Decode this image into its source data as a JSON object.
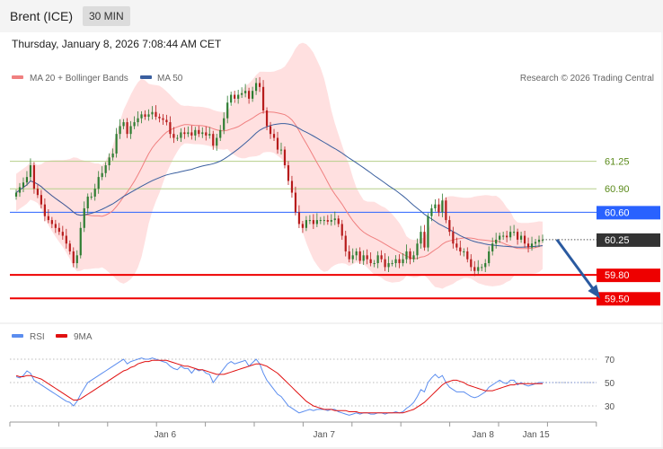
{
  "header": {
    "instrument": "Brent (ICE)",
    "timeframe": "30 MIN",
    "datetime": "Thursday, January 8, 2026 7:08:44 AM CET"
  },
  "colors": {
    "ma20": "#f08080",
    "ma50": "#3a5f9f",
    "bollinger_fill": "#ffd6d6",
    "candle_up": "#2e7d32",
    "candle_down": "#b71c1c",
    "resistance_line": "#b5cf8a",
    "pivot_line": "#2962ff",
    "support_line": "#ee0000",
    "current_tag": "#333333",
    "arrow": "#2a5aa0",
    "rsi": "#5b8def",
    "rsi_ma": "#e01010"
  },
  "chart_data": [
    {
      "type": "candlestick",
      "legend": [
        {
          "name": "MA 20 + Bollinger Bands",
          "color": "#f08080"
        },
        {
          "name": "MA 50",
          "color": "#3a5f9f"
        }
      ],
      "legend_position": "top-left",
      "copyright": "Research © 2026 Trading Central",
      "ylim": [
        59.4,
        61.9
      ],
      "x_ticks": [
        {
          "label": "Jan 6",
          "index": 45
        },
        {
          "label": "Jan 7",
          "index": 93
        },
        {
          "label": "Jan 8",
          "index": 141
        },
        {
          "label": "Jan 15",
          "index": 157
        }
      ],
      "x_count": 160,
      "levels": [
        {
          "label": "61.25",
          "value": 61.25,
          "kind": "resistance"
        },
        {
          "label": "60.90",
          "value": 60.9,
          "kind": "resistance"
        },
        {
          "label": "60.60",
          "value": 60.6,
          "kind": "pivot"
        },
        {
          "label": "59.80",
          "value": 59.8,
          "kind": "support"
        },
        {
          "label": "59.50",
          "value": 59.5,
          "kind": "support"
        }
      ],
      "current": {
        "label": "60.25",
        "value": 60.25
      },
      "forecast_arrow": {
        "from": {
          "index": 151,
          "value": 60.25
        },
        "to": {
          "index": 164,
          "value": 59.5
        }
      },
      "close": [
        60.85,
        60.92,
        60.98,
        61.05,
        61.2,
        60.9,
        60.82,
        60.7,
        60.55,
        60.5,
        60.45,
        60.4,
        60.35,
        60.3,
        60.2,
        60.1,
        59.95,
        60.05,
        60.4,
        60.65,
        60.8,
        60.8,
        60.9,
        61.05,
        61.1,
        61.2,
        61.3,
        61.35,
        61.6,
        61.7,
        61.75,
        61.6,
        61.7,
        61.75,
        61.8,
        61.85,
        61.82,
        61.85,
        61.88,
        61.82,
        61.8,
        61.78,
        61.75,
        61.6,
        61.55,
        61.55,
        61.62,
        61.6,
        61.62,
        61.58,
        61.65,
        61.6,
        61.62,
        61.58,
        61.6,
        61.45,
        61.55,
        61.65,
        61.8,
        62.0,
        62.1,
        62.05,
        62.1,
        62.12,
        62.15,
        62.05,
        62.15,
        62.25,
        62.2,
        61.9,
        61.7,
        61.6,
        61.55,
        61.4,
        61.4,
        61.2,
        61.0,
        60.85,
        60.6,
        60.45,
        60.4,
        60.5,
        60.5,
        60.45,
        60.5,
        60.5,
        60.5,
        60.48,
        60.5,
        60.52,
        60.45,
        60.3,
        60.1,
        60.0,
        60.05,
        60.1,
        59.98,
        60.05,
        60.0,
        59.95,
        59.95,
        60.05,
        60.0,
        59.9,
        59.95,
        59.95,
        60.0,
        59.95,
        60.0,
        60.1,
        60.0,
        60.05,
        60.2,
        60.35,
        60.15,
        60.55,
        60.65,
        60.7,
        60.6,
        60.75,
        60.5,
        60.35,
        60.2,
        60.15,
        60.1,
        60.1,
        60.0,
        59.9,
        59.85,
        59.9,
        59.9,
        59.95,
        60.1,
        60.2,
        60.25,
        60.3,
        60.3,
        60.28,
        60.35,
        60.35,
        60.25,
        60.3,
        60.2,
        60.15,
        60.2,
        60.22,
        60.25,
        60.25
      ],
      "y_unit": "price"
    },
    {
      "type": "line",
      "legend": [
        {
          "name": "RSI",
          "color": "#5b8def"
        },
        {
          "name": "9MA",
          "color": "#e01010"
        }
      ],
      "ylim": [
        20,
        80
      ],
      "y_ticks": [
        {
          "label": "70",
          "value": 70
        },
        {
          "label": "50",
          "value": 50
        },
        {
          "label": "30",
          "value": 30
        }
      ],
      "rsi": [
        55,
        54,
        56,
        60,
        58,
        52,
        50,
        48,
        46,
        44,
        42,
        40,
        38,
        36,
        34,
        33,
        30,
        34,
        40,
        45,
        50,
        52,
        54,
        56,
        58,
        60,
        62,
        64,
        66,
        68,
        70,
        66,
        68,
        69,
        70,
        71,
        70,
        70,
        71,
        70,
        69,
        68,
        67,
        64,
        62,
        61,
        64,
        62,
        62,
        58,
        62,
        60,
        61,
        58,
        57,
        50,
        54,
        58,
        62,
        66,
        68,
        66,
        67,
        68,
        69,
        64,
        67,
        70,
        66,
        58,
        52,
        48,
        44,
        40,
        38,
        34,
        30,
        28,
        26,
        24,
        25,
        26,
        27,
        26,
        27,
        27,
        27,
        26,
        27,
        27,
        25,
        24,
        23,
        22,
        23,
        24,
        23,
        24,
        24,
        23,
        23,
        24,
        24,
        23,
        24,
        24,
        25,
        24,
        25,
        28,
        30,
        33,
        38,
        44,
        42,
        50,
        54,
        57,
        54,
        56,
        50,
        46,
        44,
        42,
        42,
        42,
        40,
        38,
        37,
        38,
        40,
        42,
        46,
        48,
        50,
        52,
        50,
        49,
        52,
        52,
        48,
        50,
        48,
        47,
        48,
        49,
        50,
        50
      ],
      "rsi_ma": [
        56,
        55,
        55,
        56,
        56,
        55,
        54,
        53,
        51,
        49,
        47,
        45,
        43,
        41,
        39,
        37,
        35,
        35,
        36,
        38,
        40,
        42,
        44,
        46,
        48,
        50,
        52,
        54,
        56,
        58,
        60,
        61,
        63,
        64,
        66,
        67,
        68,
        68,
        69,
        69,
        69,
        69,
        69,
        68,
        67,
        66,
        65,
        64,
        64,
        63,
        62,
        61,
        61,
        60,
        59,
        58,
        57,
        57,
        57,
        58,
        59,
        60,
        61,
        62,
        63,
        64,
        65,
        66,
        66,
        65,
        64,
        62,
        60,
        58,
        55,
        52,
        49,
        46,
        43,
        40,
        37,
        34,
        32,
        30,
        29,
        28,
        27,
        27,
        27,
        26,
        26,
        26,
        26,
        25,
        25,
        25,
        24,
        24,
        24,
        24,
        24,
        24,
        24,
        24,
        24,
        24,
        24,
        24,
        24,
        25,
        26,
        27,
        29,
        31,
        33,
        36,
        39,
        42,
        45,
        48,
        50,
        51,
        52,
        52,
        51,
        50,
        48,
        47,
        46,
        45,
        44,
        43,
        43,
        43,
        44,
        45,
        46,
        47,
        48,
        48,
        49,
        49,
        49,
        49,
        49,
        49,
        49,
        49
      ]
    }
  ]
}
